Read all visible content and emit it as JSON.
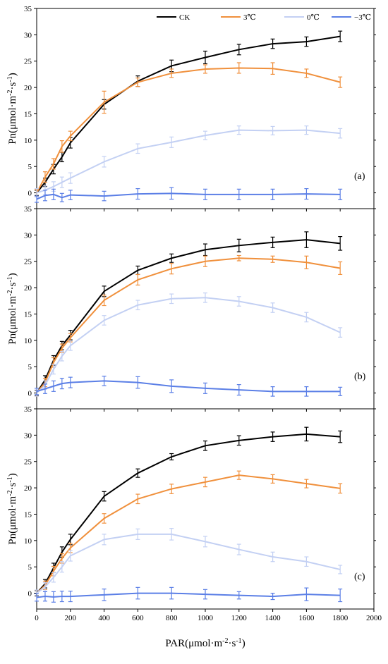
{
  "chart_data": {
    "type": "line",
    "x": [
      0,
      50,
      100,
      150,
      200,
      400,
      600,
      800,
      1000,
      1200,
      1400,
      1600,
      1800
    ],
    "xlim": [
      0,
      2000
    ],
    "xticks": [
      "0",
      "200",
      "400",
      "600",
      "800",
      "1000",
      "1200",
      "1400",
      "1600",
      "1800",
      "2000"
    ],
    "xlabel_main": "PAR(μmol·m",
    "xlabel_sup1": "-2",
    "xlabel_mid": "·s",
    "xlabel_sup2": "-1",
    "xlabel_end": ")",
    "ylabel_main": "Pn(μmol·m",
    "ylabel_sup1": "-2",
    "ylabel_mid": "·s",
    "ylabel_sup2": "-1",
    "ylabel_end": ")",
    "ylim": [
      -3,
      35
    ],
    "yticks": [
      "0",
      "5",
      "10",
      "15",
      "20",
      "25",
      "30",
      "35"
    ],
    "legend": {
      "position": "top-right",
      "entries": [
        "CK",
        "3℃",
        "0℃",
        "−3℃"
      ]
    },
    "colors": {
      "CK": "#000000",
      "3C": "#f0903c",
      "0C": "#c3d0f3",
      "m3C": "#5b7fe6"
    },
    "panels": [
      {
        "label": "(a)",
        "series": [
          {
            "name": "CK",
            "color": "#000000",
            "values": [
              0,
              2.0,
              4.5,
              6.8,
              9.5,
              16.8,
              21.2,
              24.1,
              25.7,
              27.2,
              28.3,
              28.7,
              29.7
            ],
            "errors": [
              0.5,
              0.8,
              0.9,
              0.9,
              1.0,
              0.9,
              1.0,
              1.1,
              1.2,
              1.0,
              0.9,
              0.9,
              1.0
            ]
          },
          {
            "name": "3℃",
            "color": "#f0903c",
            "values": [
              0,
              3.0,
              5.5,
              8.8,
              10.8,
              17.2,
              21.0,
              22.7,
              23.5,
              23.7,
              23.6,
              22.7,
              21.0
            ],
            "errors": [
              0.6,
              1.0,
              1.0,
              1.1,
              0.9,
              2.1,
              0.8,
              0.8,
              0.8,
              1.0,
              1.1,
              0.8,
              1.0
            ]
          },
          {
            "name": "0℃",
            "color": "#c3d0f3",
            "values": [
              0,
              0.5,
              1.2,
              2.0,
              2.8,
              5.9,
              8.4,
              9.6,
              10.9,
              11.9,
              11.8,
              11.9,
              11.3
            ],
            "errors": [
              0.8,
              0.8,
              0.9,
              1.0,
              1.0,
              1.0,
              0.9,
              1.0,
              0.8,
              0.8,
              0.8,
              0.8,
              0.9
            ]
          },
          {
            "name": "−3℃",
            "color": "#5b7fe6",
            "values": [
              -1.2,
              -0.5,
              -0.3,
              -0.9,
              -0.4,
              -0.6,
              -0.2,
              -0.1,
              -0.3,
              -0.3,
              -0.3,
              -0.2,
              -0.3
            ],
            "errors": [
              0.6,
              1.0,
              1.0,
              0.8,
              0.9,
              0.9,
              1.0,
              1.1,
              1.0,
              1.0,
              1.0,
              1.0,
              1.0
            ]
          }
        ]
      },
      {
        "label": "(b)",
        "series": [
          {
            "name": "CK",
            "color": "#000000",
            "values": [
              0,
              2.5,
              6.2,
              9.0,
              11.0,
              19.3,
              23.3,
              25.6,
              27.2,
              28.0,
              28.6,
              29.1,
              28.4
            ],
            "errors": [
              0.5,
              0.8,
              0.9,
              0.8,
              0.9,
              1.0,
              0.8,
              0.8,
              1.1,
              1.2,
              1.0,
              1.5,
              1.3
            ]
          },
          {
            "name": "3℃",
            "color": "#f0903c",
            "values": [
              0,
              2.0,
              5.8,
              8.5,
              10.5,
              17.6,
              21.5,
              23.6,
              25.0,
              25.6,
              25.4,
              24.8,
              23.7
            ],
            "errors": [
              0.6,
              0.8,
              0.9,
              0.8,
              0.8,
              1.0,
              1.0,
              1.0,
              1.0,
              0.5,
              0.6,
              1.2,
              1.2
            ]
          },
          {
            "name": "0℃",
            "color": "#c3d0f3",
            "values": [
              0,
              1.5,
              4.5,
              7.0,
              9.0,
              13.8,
              16.7,
              17.9,
              18.1,
              17.4,
              16.2,
              14.4,
              11.5
            ],
            "errors": [
              0.6,
              0.8,
              0.9,
              0.9,
              0.9,
              0.9,
              0.9,
              0.9,
              0.9,
              0.9,
              0.9,
              0.9,
              0.9
            ]
          },
          {
            "name": "−3℃",
            "color": "#5b7fe6",
            "values": [
              0.3,
              0.8,
              1.3,
              1.8,
              2.0,
              2.3,
              2.0,
              1.3,
              0.9,
              0.6,
              0.3,
              0.3,
              0.3
            ],
            "errors": [
              0.6,
              0.9,
              1.0,
              1.0,
              1.0,
              0.9,
              1.1,
              1.2,
              1.0,
              1.0,
              0.9,
              0.9,
              0.8
            ]
          }
        ]
      },
      {
        "label": "(c)",
        "series": [
          {
            "name": "CK",
            "color": "#000000",
            "values": [
              0,
              1.8,
              4.8,
              7.8,
              10.2,
              18.4,
              22.8,
              25.9,
              28.0,
              29.0,
              29.7,
              30.2,
              29.7
            ],
            "errors": [
              0.5,
              0.8,
              0.9,
              1.0,
              1.0,
              0.9,
              0.8,
              0.6,
              0.9,
              0.9,
              0.9,
              1.3,
              1.1
            ]
          },
          {
            "name": "3℃",
            "color": "#f0903c",
            "values": [
              0,
              1.5,
              4.2,
              6.6,
              8.6,
              14.2,
              17.9,
              19.8,
              21.1,
              22.4,
              21.7,
              20.8,
              19.9
            ],
            "errors": [
              0.6,
              0.8,
              0.9,
              0.9,
              0.9,
              0.9,
              0.9,
              0.9,
              0.9,
              0.8,
              0.8,
              0.8,
              0.9
            ]
          },
          {
            "name": "0℃",
            "color": "#c3d0f3",
            "values": [
              0,
              1.2,
              3.0,
              5.0,
              7.1,
              10.2,
              11.2,
              11.2,
              9.8,
              8.3,
              6.9,
              6.0,
              4.5
            ],
            "errors": [
              0.6,
              0.8,
              0.9,
              1.0,
              1.0,
              1.0,
              1.0,
              1.1,
              1.0,
              1.0,
              0.9,
              0.9,
              0.8
            ]
          },
          {
            "name": "−3℃",
            "color": "#5b7fe6",
            "values": [
              -0.8,
              -0.6,
              -0.7,
              -0.6,
              -0.6,
              -0.3,
              0.0,
              0.0,
              -0.2,
              -0.4,
              -0.6,
              -0.2,
              -0.4
            ],
            "errors": [
              0.7,
              0.9,
              1.0,
              1.0,
              1.0,
              1.1,
              1.1,
              1.1,
              0.9,
              0.7,
              0.6,
              1.2,
              1.2
            ]
          }
        ]
      }
    ]
  }
}
